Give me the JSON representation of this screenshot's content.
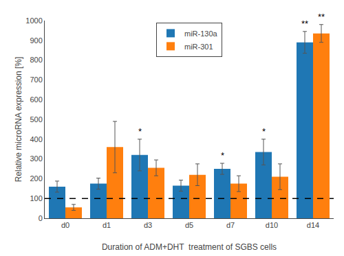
{
  "chart_data": {
    "type": "bar",
    "ylabel": "Relative microRNA expression [%]",
    "xlabel": "Duration of ADM+DHT  treatment of SGBS cells",
    "categories": [
      "d0",
      "d1",
      "d3",
      "d5",
      "d7",
      "d10",
      "d14"
    ],
    "series": [
      {
        "name": "miR-130a",
        "values": [
          160,
          175,
          320,
          165,
          250,
          335,
          890
        ],
        "errors": [
          28,
          28,
          80,
          28,
          28,
          65,
          55
        ],
        "annotations": [
          null,
          null,
          "*",
          null,
          "*",
          "*",
          "**"
        ]
      },
      {
        "name": "miR-301",
        "values": [
          55,
          360,
          255,
          220,
          175,
          210,
          935
        ],
        "errors": [
          15,
          130,
          40,
          55,
          40,
          65,
          45
        ],
        "annotations": [
          null,
          null,
          null,
          null,
          null,
          null,
          "**"
        ]
      }
    ],
    "reference_line": {
      "y": 100,
      "line_style": "dashed",
      "color": "#000000"
    },
    "ylim": [
      0,
      1000
    ],
    "yticks": [
      0,
      100,
      200,
      300,
      400,
      500,
      600,
      700,
      800,
      900,
      1000
    ],
    "grid": false,
    "legend": "upper center"
  }
}
